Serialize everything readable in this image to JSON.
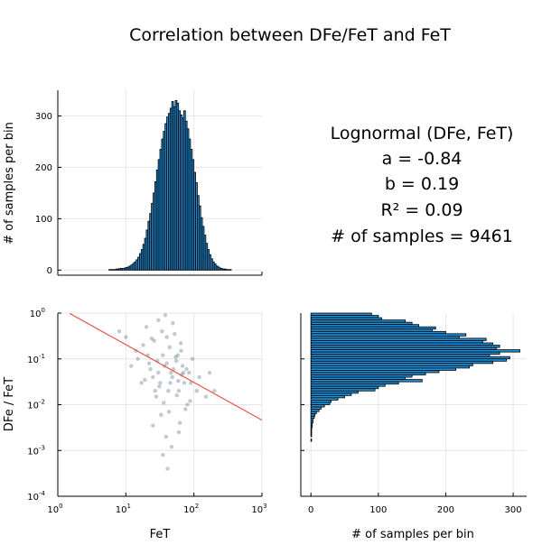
{
  "title": "Correlation between DFe/FeT and FeT",
  "stats": {
    "heading": "Lognormal (DFe, FeT)",
    "a": "a = -0.84",
    "b": "b = 0.19",
    "r2": "R² = 0.09",
    "n": "# of samples = 9461"
  },
  "colors": {
    "bar_fill": "#1f8fd8",
    "bar_edge": "#000000",
    "points": "#1c3f5a",
    "fit_line": "#e3584a",
    "grid": "#e6e6e6"
  },
  "chart_data": [
    {
      "type": "bar",
      "name": "top-histogram-FeT",
      "xscale": "log10",
      "xlim": [
        0,
        3
      ],
      "ylim": [
        -10,
        350
      ],
      "ylabel": "# of samples per bin",
      "yticks": [
        0,
        100,
        200,
        300
      ],
      "ytick_labels": [
        "0",
        "100",
        "200",
        "300"
      ],
      "grid": true,
      "bin_edges_log10_start": 0.75,
      "bin_width_log10": 0.025,
      "values": [
        1,
        1,
        1,
        1,
        2,
        2,
        3,
        3,
        3,
        4,
        5,
        6,
        8,
        10,
        13,
        16,
        20,
        25,
        32,
        40,
        50,
        62,
        78,
        95,
        110,
        130,
        150,
        172,
        195,
        215,
        235,
        255,
        270,
        285,
        298,
        305,
        315,
        328,
        318,
        330,
        325,
        310,
        302,
        296,
        310,
        290,
        275,
        255,
        235,
        215,
        190,
        170,
        145,
        125,
        102,
        85,
        68,
        52,
        40,
        30,
        22,
        16,
        12,
        8,
        6,
        4,
        3,
        2,
        2,
        1,
        1,
        1
      ]
    },
    {
      "type": "scatter",
      "name": "FeT-vs-DFe/FeT",
      "xlabel": "FeT",
      "ylabel": "DFe / FeT",
      "xscale": "log10",
      "yscale": "log10",
      "xlim": [
        1,
        1000
      ],
      "ylim": [
        0.0001,
        1
      ],
      "xticks": [
        1,
        10,
        100,
        1000
      ],
      "xtick_labels": [
        {
          "base": "10",
          "exp": "0"
        },
        {
          "base": "10",
          "exp": "1"
        },
        {
          "base": "10",
          "exp": "2"
        },
        {
          "base": "10",
          "exp": "3"
        }
      ],
      "yticks": [
        0.0001,
        0.001,
        0.01,
        0.1,
        1
      ],
      "ytick_labels": [
        {
          "base": "10",
          "exp": "-4"
        },
        {
          "base": "10",
          "exp": "-3"
        },
        {
          "base": "10",
          "exp": "-2"
        },
        {
          "base": "10",
          "exp": "-1"
        },
        {
          "base": "10",
          "exp": "0"
        }
      ],
      "grid": true,
      "fit_line": {
        "x": [
          1.5,
          1000
        ],
        "y": [
          0.98,
          0.0046
        ]
      },
      "points": [
        [
          30,
          0.05
        ],
        [
          45,
          0.03
        ],
        [
          22,
          0.08
        ],
        [
          60,
          0.02
        ],
        [
          18,
          0.2
        ],
        [
          35,
          0.12
        ],
        [
          80,
          0.01
        ],
        [
          25,
          0.04
        ],
        [
          50,
          0.06
        ],
        [
          40,
          0.3
        ],
        [
          15,
          0.1
        ],
        [
          70,
          0.05
        ],
        [
          28,
          0.015
        ],
        [
          55,
          0.09
        ],
        [
          33,
          0.006
        ],
        [
          90,
          0.03
        ],
        [
          20,
          0.5
        ],
        [
          42,
          0.02
        ],
        [
          65,
          0.15
        ],
        [
          12,
          0.07
        ],
        [
          38,
          0.9
        ],
        [
          48,
          0.04
        ],
        [
          75,
          0.008
        ],
        [
          26,
          0.25
        ],
        [
          58,
          0.12
        ],
        [
          32,
          0.03
        ],
        [
          110,
          0.02
        ],
        [
          23,
          0.06
        ],
        [
          44,
          0.18
        ],
        [
          68,
          0.07
        ],
        [
          36,
          0.011
        ],
        [
          52,
          0.35
        ],
        [
          17,
          0.03
        ],
        [
          85,
          0.05
        ],
        [
          30,
          0.7
        ],
        [
          62,
          0.004
        ],
        [
          40,
          0.08
        ],
        [
          27,
          0.02
        ],
        [
          95,
          0.1
        ],
        [
          46,
          0.05
        ],
        [
          14,
          0.15
        ],
        [
          72,
          0.03
        ],
        [
          34,
          0.4
        ],
        [
          56,
          0.016
        ],
        [
          21,
          0.12
        ],
        [
          120,
          0.04
        ],
        [
          39,
          0.002
        ],
        [
          64,
          0.22
        ],
        [
          29,
          0.09
        ],
        [
          49,
          0.6
        ],
        [
          31,
          0.025
        ],
        [
          78,
          0.06
        ],
        [
          19,
          0.035
        ],
        [
          54,
          0.11
        ],
        [
          43,
          0.007
        ],
        [
          66,
          0.045
        ],
        [
          24,
          0.28
        ],
        [
          88,
          0.012
        ],
        [
          37,
          0.07
        ],
        [
          59,
          0.033
        ],
        [
          150,
          0.015
        ],
        [
          10,
          0.3
        ],
        [
          200,
          0.02
        ],
        [
          8,
          0.4
        ],
        [
          170,
          0.05
        ],
        [
          47,
          0.0012
        ],
        [
          35,
          0.0008
        ],
        [
          60,
          0.0025
        ],
        [
          41,
          0.0004
        ],
        [
          25,
          0.0035
        ]
      ]
    },
    {
      "type": "bar",
      "orientation": "horizontal",
      "name": "right-histogram-DFe/FeT",
      "xlabel": "# of samples per bin",
      "xlim": [
        -15,
        320
      ],
      "xticks": [
        0,
        100,
        200,
        300
      ],
      "xtick_labels": [
        "0",
        "100",
        "200",
        "300"
      ],
      "yscale": "log10",
      "ylim": [
        -4,
        0
      ],
      "grid": true,
      "bin_top_log10": 0,
      "bin_height_log10": 0.05,
      "values": [
        90,
        100,
        105,
        140,
        150,
        160,
        185,
        180,
        200,
        230,
        220,
        260,
        255,
        270,
        280,
        275,
        310,
        280,
        265,
        295,
        290,
        270,
        240,
        235,
        215,
        190,
        170,
        150,
        140,
        165,
        130,
        110,
        100,
        95,
        70,
        60,
        50,
        40,
        30,
        28,
        20,
        15,
        12,
        8,
        6,
        5,
        3,
        3,
        2,
        2,
        1,
        1,
        1,
        1,
        0,
        1,
        0,
        0,
        0,
        0,
        0,
        0,
        0,
        0,
        0,
        0,
        0,
        0,
        0,
        0,
        0,
        0,
        0,
        0,
        0,
        0,
        0,
        0,
        0,
        0
      ]
    }
  ]
}
